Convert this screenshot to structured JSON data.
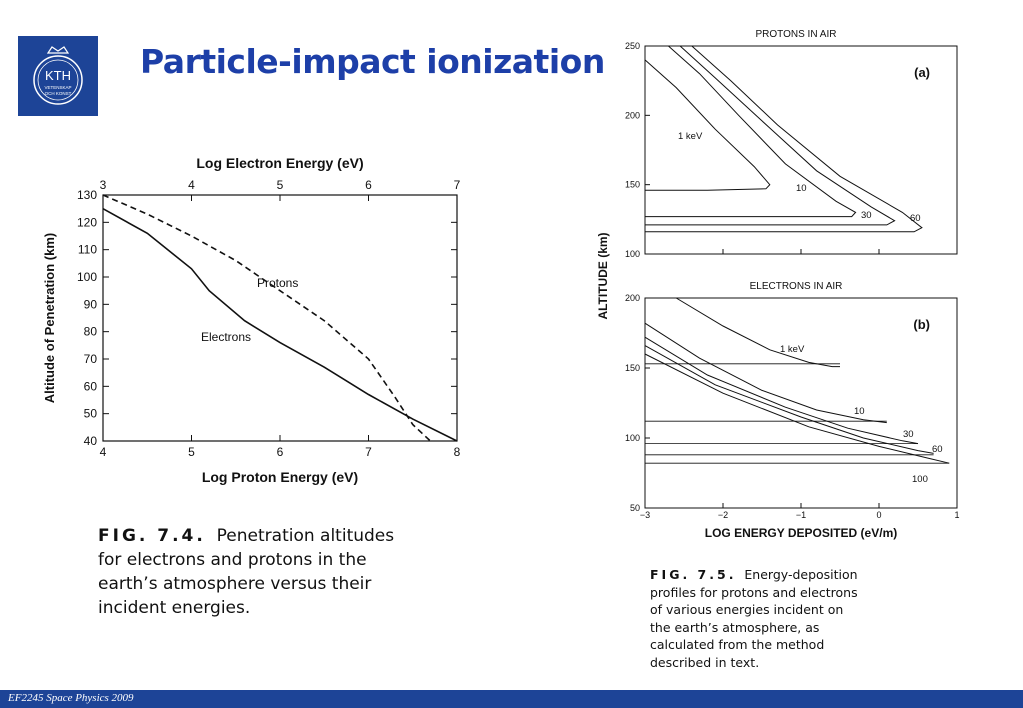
{
  "logo": {
    "text": "KTH",
    "subtext_1": "VETENSKAP",
    "subtext_2": "OCH KONST"
  },
  "title": "Particle-impact ionization",
  "footer": "EF2245 Space Physics 2009",
  "fig74": {
    "label": "FIG. 7.4.",
    "caption": "Penetration altitudes for electrons and protons in the earth’s atmosphere versus their incident energies.",
    "chart_data": {
      "type": "line",
      "top_xlabel": "Log Electron Energy (eV)",
      "top_ticks": [
        "3",
        "4",
        "5",
        "6",
        "7"
      ],
      "xlabel": "Log Proton Energy (eV)",
      "bottom_ticks": [
        "4",
        "5",
        "6",
        "7",
        "8"
      ],
      "ylabel": "Altitude of Penetration (km)",
      "yticks": [
        "130",
        "120",
        "110",
        "100",
        "90",
        "80",
        "70",
        "60",
        "50",
        "40"
      ],
      "xlim": [
        4,
        8
      ],
      "ylim": [
        40,
        130
      ],
      "series": [
        {
          "name": "Electrons",
          "style": "solid",
          "x": [
            4.0,
            4.5,
            5.0,
            5.2,
            5.6,
            6.0,
            6.5,
            7.0,
            7.5,
            8.0
          ],
          "y": [
            125,
            116,
            103,
            95,
            84,
            76,
            67,
            57,
            48,
            40
          ]
        },
        {
          "name": "Protons",
          "style": "dashed",
          "x": [
            4.0,
            4.5,
            5.0,
            5.5,
            6.0,
            6.5,
            7.0,
            7.3,
            7.5,
            7.7
          ],
          "y": [
            130,
            123,
            115,
            106,
            95,
            84,
            70,
            56,
            46,
            40
          ]
        }
      ]
    }
  },
  "fig75": {
    "label": "FIG. 7.5.",
    "caption": "Energy-deposition profiles for protons and electrons of various energies incident on the earth’s atmosphere, as calculated from the method described in text.",
    "ylabel": "ALTITUDE (km)",
    "xlabel": "LOG ENERGY DEPOSITED (eV/m)",
    "xticks": [
      "−3",
      "−2",
      "−1",
      "0",
      "1"
    ],
    "chart_data": [
      {
        "type": "line",
        "title": "PROTONS IN AIR",
        "panel_label": "(a)",
        "xlim": [
          -3,
          1
        ],
        "ylim": [
          100,
          250
        ],
        "yticks": [
          "250",
          "200",
          "150",
          "100"
        ],
        "series": [
          {
            "name": "1 keV",
            "x": [
              -3.0,
              -2.6,
              -2.1,
              -1.6,
              -1.4,
              -1.45,
              -2.2,
              -3.0
            ],
            "y": [
              240,
              220,
              190,
              163,
              150,
              147,
              146,
              146
            ]
          },
          {
            "name": "10",
            "x": [
              -2.7,
              -2.3,
              -1.8,
              -1.2,
              -0.55,
              -0.3,
              -0.35,
              -1.5,
              -3.0
            ],
            "y": [
              250,
              230,
              200,
              165,
              138,
              130,
              127,
              127,
              127
            ]
          },
          {
            "name": "30",
            "x": [
              -2.55,
              -2.1,
              -1.5,
              -0.8,
              -0.1,
              0.2,
              0.1,
              -1.5,
              -3.0
            ],
            "y": [
              250,
              227,
              196,
              160,
              134,
              124,
              121,
              121,
              121
            ]
          },
          {
            "name": "60",
            "x": [
              -2.4,
              -1.9,
              -1.3,
              -0.5,
              0.3,
              0.55,
              0.45,
              -1.5,
              -3.0
            ],
            "y": [
              250,
              225,
              193,
              156,
              130,
              119,
              116,
              116,
              116
            ]
          }
        ]
      },
      {
        "type": "line",
        "title": "ELECTRONS IN AIR",
        "panel_label": "(b)",
        "xlim": [
          -3,
          1
        ],
        "ylim": [
          50,
          200
        ],
        "yticks": [
          "200",
          "150",
          "100",
          "50"
        ],
        "series": [
          {
            "name": "1 keV",
            "x": [
              -2.6,
              -2.0,
              -1.4,
              -0.9,
              -0.6,
              -0.5
            ],
            "y": [
              200,
              180,
              163,
              154,
              151,
              151
            ],
            "flat_y": 153
          },
          {
            "name": "10",
            "x": [
              -3.0,
              -2.3,
              -1.5,
              -0.8,
              -0.2,
              0.1
            ],
            "y": [
              182,
              157,
              134,
              120,
              113,
              111
            ],
            "flat_y": 112
          },
          {
            "name": "30",
            "x": [
              -3.0,
              -2.2,
              -1.2,
              -0.4,
              0.3,
              0.5
            ],
            "y": [
              172,
              145,
              122,
              107,
              98,
              96
            ],
            "flat_y": 96
          },
          {
            "name": "60",
            "x": [
              -3.0,
              -2.1,
              -1.0,
              -0.2,
              0.5,
              0.7
            ],
            "y": [
              166,
              138,
              115,
              100,
              91,
              89
            ],
            "flat_y": 88
          },
          {
            "name": "100",
            "x": [
              -3.0,
              -2.0,
              -0.9,
              0.0,
              0.6,
              0.9
            ],
            "y": [
              160,
              132,
              108,
              94,
              86,
              82
            ],
            "flat_y": 82
          }
        ]
      }
    ]
  }
}
